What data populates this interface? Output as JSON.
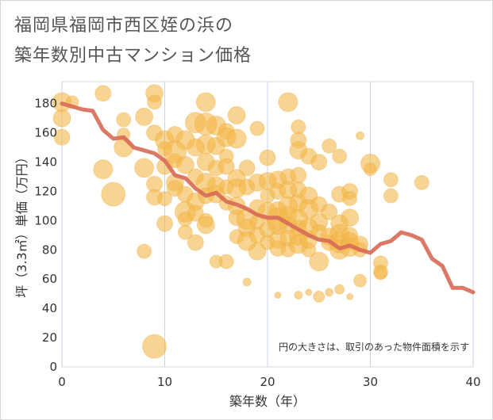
{
  "title_line1": "福岡県福岡市西区姪の浜の",
  "title_line2": "築年数別中古マンション価格",
  "chart_data": {
    "type": "scatter",
    "xlabel": "築年数（年）",
    "ylabel": "坪（3.3㎡）単価（万円）",
    "note": "円の大きさは、取引のあった物件面積を示す",
    "xlim": [
      0,
      40
    ],
    "ylim": [
      0,
      195
    ],
    "xticks": [
      0,
      10,
      20,
      30,
      40
    ],
    "yticks": [
      0,
      20,
      40,
      60,
      80,
      100,
      120,
      140,
      160,
      180
    ],
    "grid": "vertical",
    "colors": {
      "bubble": "#f3b84a",
      "line": "#d76a55"
    },
    "trend": {
      "x": [
        0,
        1,
        2,
        3,
        4,
        5,
        6,
        7,
        8,
        9,
        10,
        11,
        12,
        13,
        14,
        15,
        16,
        17,
        18,
        19,
        20,
        21,
        22,
        23,
        24,
        25,
        26,
        27,
        28,
        29,
        30,
        31,
        32,
        33,
        34,
        35,
        36,
        37,
        38,
        39,
        40
      ],
      "y": [
        180,
        178,
        176,
        175,
        162,
        156,
        157,
        150,
        148,
        146,
        141,
        131,
        129,
        122,
        117,
        119,
        113,
        111,
        108,
        104,
        102,
        102,
        98,
        94,
        90,
        87,
        86,
        81,
        83,
        80,
        78,
        84,
        86,
        92,
        90,
        87,
        74,
        69,
        54,
        54,
        51
      ]
    },
    "bubbles": [
      [
        0,
        181,
        12
      ],
      [
        0,
        170,
        11
      ],
      [
        0,
        157,
        10
      ],
      [
        1,
        181,
        8
      ],
      [
        4,
        187,
        10
      ],
      [
        4,
        135,
        12
      ],
      [
        5,
        118,
        15
      ],
      [
        6,
        169,
        9
      ],
      [
        6,
        150,
        12
      ],
      [
        6,
        159,
        8
      ],
      [
        8,
        171,
        11
      ],
      [
        8,
        136,
        12
      ],
      [
        8,
        79,
        9
      ],
      [
        9,
        187,
        11
      ],
      [
        9,
        181,
        9
      ],
      [
        9,
        160,
        10
      ],
      [
        9,
        125,
        10
      ],
      [
        9,
        116,
        10
      ],
      [
        9,
        14,
        15
      ],
      [
        10,
        155,
        12
      ],
      [
        10,
        137,
        10
      ],
      [
        10,
        115,
        9
      ],
      [
        10,
        98,
        10
      ],
      [
        10,
        149,
        9
      ],
      [
        11,
        147,
        14
      ],
      [
        11,
        141,
        9
      ],
      [
        11,
        126,
        11
      ],
      [
        11,
        159,
        10
      ],
      [
        11,
        122,
        10
      ],
      [
        12,
        155,
        12
      ],
      [
        12,
        138,
        11
      ],
      [
        12,
        118,
        10
      ],
      [
        12,
        106,
        13
      ],
      [
        12,
        101,
        9
      ],
      [
        12,
        92,
        9
      ],
      [
        13,
        167,
        13
      ],
      [
        13,
        150,
        11
      ],
      [
        13,
        130,
        10
      ],
      [
        13,
        113,
        11
      ],
      [
        13,
        105,
        10
      ],
      [
        13,
        85,
        10
      ],
      [
        14,
        181,
        12
      ],
      [
        14,
        166,
        14
      ],
      [
        14,
        152,
        12
      ],
      [
        14,
        140,
        11
      ],
      [
        14,
        126,
        12
      ],
      [
        14,
        117,
        10
      ],
      [
        14,
        100,
        9
      ],
      [
        14,
        97,
        11
      ],
      [
        15,
        165,
        12
      ],
      [
        15,
        151,
        11
      ],
      [
        15,
        136,
        10
      ],
      [
        15,
        124,
        11
      ],
      [
        15,
        118,
        11
      ],
      [
        15,
        72,
        8
      ],
      [
        16,
        161,
        10
      ],
      [
        16,
        157,
        12
      ],
      [
        16,
        144,
        9
      ],
      [
        16,
        137,
        10
      ],
      [
        16,
        123,
        9
      ],
      [
        16,
        112,
        9
      ],
      [
        16,
        72,
        9
      ],
      [
        17,
        172,
        11
      ],
      [
        17,
        156,
        12
      ],
      [
        17,
        129,
        11
      ],
      [
        17,
        122,
        12
      ],
      [
        17,
        110,
        11
      ],
      [
        17,
        102,
        10
      ],
      [
        17,
        89,
        9
      ],
      [
        18,
        136,
        10
      ],
      [
        18,
        123,
        10
      ],
      [
        18,
        101,
        13
      ],
      [
        18,
        95,
        11
      ],
      [
        18,
        86,
        12
      ],
      [
        18,
        58,
        5
      ],
      [
        19,
        163,
        9
      ],
      [
        19,
        126,
        11
      ],
      [
        19,
        109,
        10
      ],
      [
        19,
        99,
        9
      ],
      [
        19,
        90,
        10
      ],
      [
        19,
        79,
        11
      ],
      [
        20,
        143,
        10
      ],
      [
        20,
        127,
        11
      ],
      [
        20,
        117,
        9
      ],
      [
        20,
        106,
        12
      ],
      [
        20,
        94,
        10
      ],
      [
        20,
        85,
        9
      ],
      [
        21,
        128,
        11
      ],
      [
        21,
        120,
        10
      ],
      [
        21,
        107,
        11
      ],
      [
        21,
        101,
        14
      ],
      [
        21,
        97,
        12
      ],
      [
        21,
        87,
        11
      ],
      [
        21,
        81,
        10
      ],
      [
        21,
        49,
        4
      ],
      [
        22,
        181,
        12
      ],
      [
        22,
        130,
        10
      ],
      [
        22,
        121,
        11
      ],
      [
        22,
        110,
        12
      ],
      [
        22,
        104,
        11
      ],
      [
        22,
        97,
        11
      ],
      [
        22,
        88,
        10
      ],
      [
        22,
        80,
        9
      ],
      [
        23,
        164,
        9
      ],
      [
        23,
        155,
        10
      ],
      [
        23,
        148,
        11
      ],
      [
        23,
        131,
        10
      ],
      [
        23,
        121,
        10
      ],
      [
        23,
        112,
        11
      ],
      [
        23,
        101,
        12
      ],
      [
        23,
        95,
        10
      ],
      [
        23,
        89,
        11
      ],
      [
        23,
        84,
        12
      ],
      [
        23,
        49,
        5
      ],
      [
        24,
        144,
        10
      ],
      [
        24,
        117,
        11
      ],
      [
        24,
        108,
        12
      ],
      [
        24,
        95,
        12
      ],
      [
        24,
        87,
        11
      ],
      [
        24,
        80,
        9
      ],
      [
        24,
        51,
        4
      ],
      [
        25,
        140,
        10
      ],
      [
        25,
        111,
        10
      ],
      [
        25,
        99,
        11
      ],
      [
        25,
        92,
        10
      ],
      [
        25,
        72,
        12
      ],
      [
        25,
        48,
        7
      ],
      [
        26,
        151,
        9
      ],
      [
        26,
        106,
        10
      ],
      [
        26,
        89,
        11
      ],
      [
        26,
        85,
        10
      ],
      [
        26,
        51,
        5
      ],
      [
        27,
        144,
        9
      ],
      [
        27,
        118,
        10
      ],
      [
        27,
        98,
        11
      ],
      [
        27,
        91,
        12
      ],
      [
        27,
        85,
        13
      ],
      [
        27,
        80,
        12
      ],
      [
        27,
        53,
        6
      ],
      [
        28,
        120,
        10
      ],
      [
        28,
        115,
        9
      ],
      [
        28,
        102,
        11
      ],
      [
        28,
        90,
        10
      ],
      [
        28,
        86,
        11
      ],
      [
        28,
        82,
        12
      ],
      [
        28,
        48,
        4
      ],
      [
        29,
        158,
        5
      ],
      [
        29,
        84,
        10
      ],
      [
        29,
        80,
        9
      ],
      [
        29,
        59,
        8
      ],
      [
        30,
        139,
        12
      ],
      [
        30,
        135,
        8
      ],
      [
        31,
        71,
        9
      ],
      [
        31,
        65,
        9
      ],
      [
        31,
        64,
        8
      ],
      [
        32,
        128,
        9
      ],
      [
        32,
        117,
        9
      ],
      [
        35,
        126,
        9
      ]
    ]
  }
}
